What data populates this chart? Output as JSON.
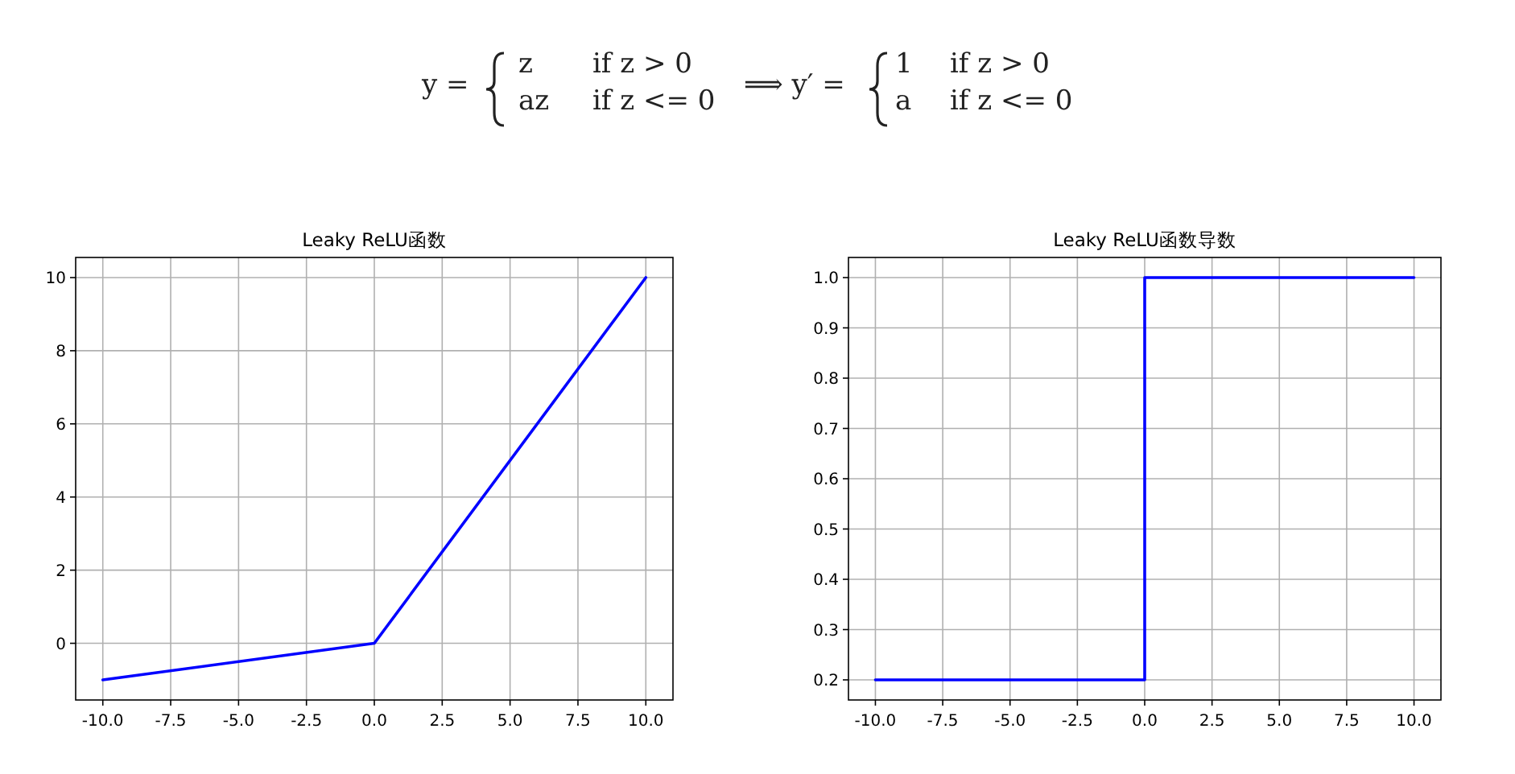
{
  "chart_data": [
    {
      "type": "line",
      "title": "Leaky ReLU函数",
      "x": [
        -10,
        0,
        10
      ],
      "series": [
        {
          "color": "#0000ff",
          "values": [
            -1,
            0,
            10
          ]
        }
      ],
      "xlim": [
        -11,
        11
      ],
      "ylim": [
        -1.55,
        10.55
      ],
      "xticks": [
        {
          "value": -10,
          "label": "-10.0"
        },
        {
          "value": -7.5,
          "label": "-7.5"
        },
        {
          "value": -5,
          "label": "-5.0"
        },
        {
          "value": -2.5,
          "label": "-2.5"
        },
        {
          "value": 0,
          "label": "0.0"
        },
        {
          "value": 2.5,
          "label": "2.5"
        },
        {
          "value": 5,
          "label": "5.0"
        },
        {
          "value": 7.5,
          "label": "7.5"
        },
        {
          "value": 10,
          "label": "10.0"
        }
      ],
      "yticks": [
        0,
        2,
        4,
        6,
        8,
        10
      ],
      "grid": true,
      "annotations": [
        "y =",
        "z",
        "if z > 0",
        "az",
        "if z <= 0",
        "⟹ y′ =",
        "1",
        "if z > 0",
        "a",
        "if z <= 0"
      ]
    },
    {
      "type": "line",
      "title": "Leaky ReLU函数导数",
      "x": [
        -10,
        0,
        0,
        10
      ],
      "series": [
        {
          "color": "#0000ff",
          "values": [
            0.2,
            0.2,
            1,
            1
          ]
        }
      ],
      "xlim": [
        -11,
        11
      ],
      "ylim": [
        0.16,
        1.04
      ],
      "xticks": [
        {
          "value": -10,
          "label": "-10.0"
        },
        {
          "value": -7.5,
          "label": "-7.5"
        },
        {
          "value": -5,
          "label": "-5.0"
        },
        {
          "value": -2.5,
          "label": "-2.5"
        },
        {
          "value": 0,
          "label": "0.0"
        },
        {
          "value": 2.5,
          "label": "2.5"
        },
        {
          "value": 5,
          "label": "5.0"
        },
        {
          "value": 7.5,
          "label": "7.5"
        },
        {
          "value": 10,
          "label": "10.0"
        }
      ],
      "yticks": [
        0.2,
        0.3,
        0.4,
        0.5,
        0.6,
        0.7,
        0.8,
        0.9,
        {
          "value": 1,
          "label": "1.0"
        }
      ],
      "grid": true
    }
  ]
}
